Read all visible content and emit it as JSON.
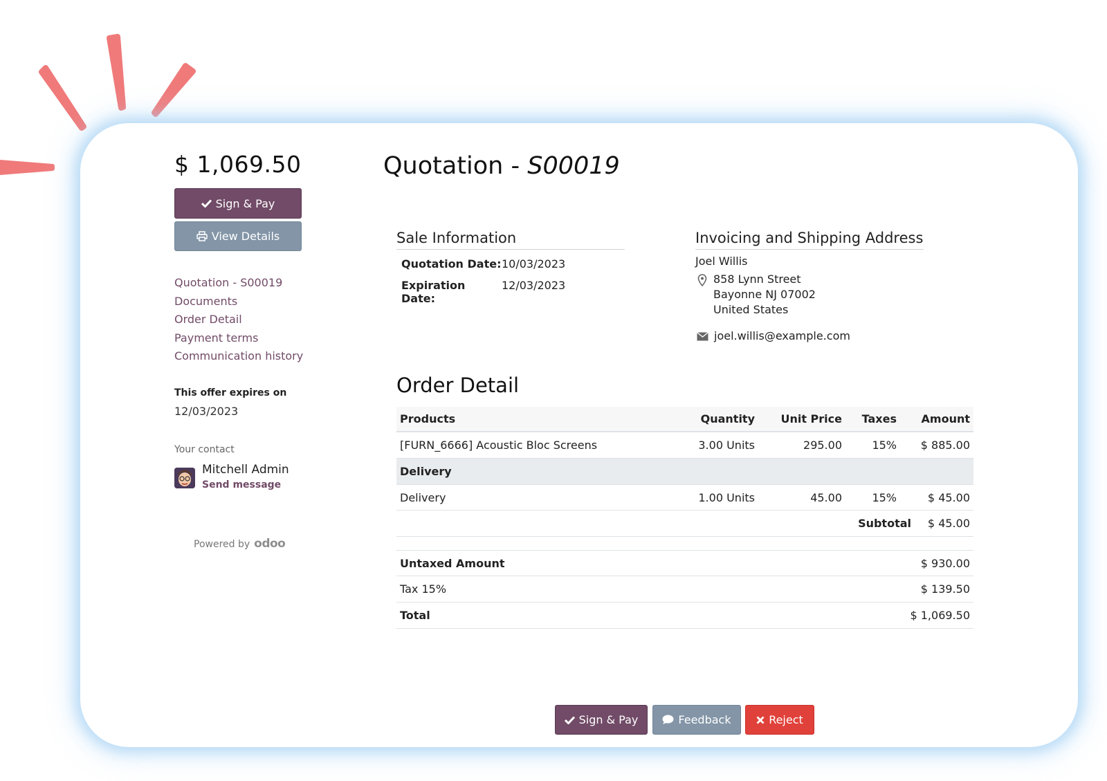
{
  "sidebar": {
    "total": "$ 1,069.50",
    "sign_pay_label": "Sign & Pay",
    "view_details_label": "View Details",
    "nav": [
      "Quotation - S00019",
      "Documents",
      "Order Detail",
      "Payment terms",
      "Communication history"
    ],
    "expires_label": "This offer expires on",
    "expires_date": "12/03/2023",
    "contact_label": "Your contact",
    "contact_name": "Mitchell Admin",
    "send_message": "Send message",
    "powered_by": "Powered by",
    "brand": "odoo"
  },
  "header": {
    "title_prefix": "Quotation - ",
    "title_ref": "S00019"
  },
  "sale_info": {
    "heading": "Sale Information",
    "quotation_date_label": "Quotation Date:",
    "quotation_date": "10/03/2023",
    "expiration_date_label": "Expiration Date:",
    "expiration_date": "12/03/2023"
  },
  "address": {
    "heading": "Invoicing and Shipping Address",
    "name": "Joel Willis",
    "street": "858 Lynn Street",
    "city": "Bayonne NJ 07002",
    "country": "United States",
    "email": "joel.willis@example.com"
  },
  "order": {
    "heading": "Order Detail",
    "columns": [
      "Products",
      "Quantity",
      "Unit Price",
      "Taxes",
      "Amount"
    ],
    "lines": [
      {
        "product": "[FURN_6666] Acoustic Bloc Screens",
        "quantity": "3.00 Units",
        "unit_price": "295.00",
        "taxes": "15%",
        "amount": "$ 885.00"
      }
    ],
    "section": "Delivery",
    "section_lines": [
      {
        "product": "Delivery",
        "quantity": "1.00 Units",
        "unit_price": "45.00",
        "taxes": "15%",
        "amount": "$ 45.00"
      }
    ],
    "subtotal_label": "Subtotal",
    "subtotal": "$ 45.00",
    "untaxed_label": "Untaxed Amount",
    "untaxed": "$ 930.00",
    "tax_label": "Tax 15%",
    "tax": "$ 139.50",
    "total_label": "Total",
    "total": "$ 1,069.50"
  },
  "actions": {
    "sign_pay": "Sign & Pay",
    "feedback": "Feedback",
    "reject": "Reject"
  },
  "colors": {
    "primary": "#714b67",
    "secondary": "#8395a7",
    "danger": "#e0413a",
    "spark": "#f07a7a"
  },
  "icons": {
    "sign": "check-icon",
    "view": "print-icon",
    "feedback": "comment-icon",
    "reject": "close-icon",
    "address": "map-marker-icon",
    "email": "envelope-icon"
  }
}
